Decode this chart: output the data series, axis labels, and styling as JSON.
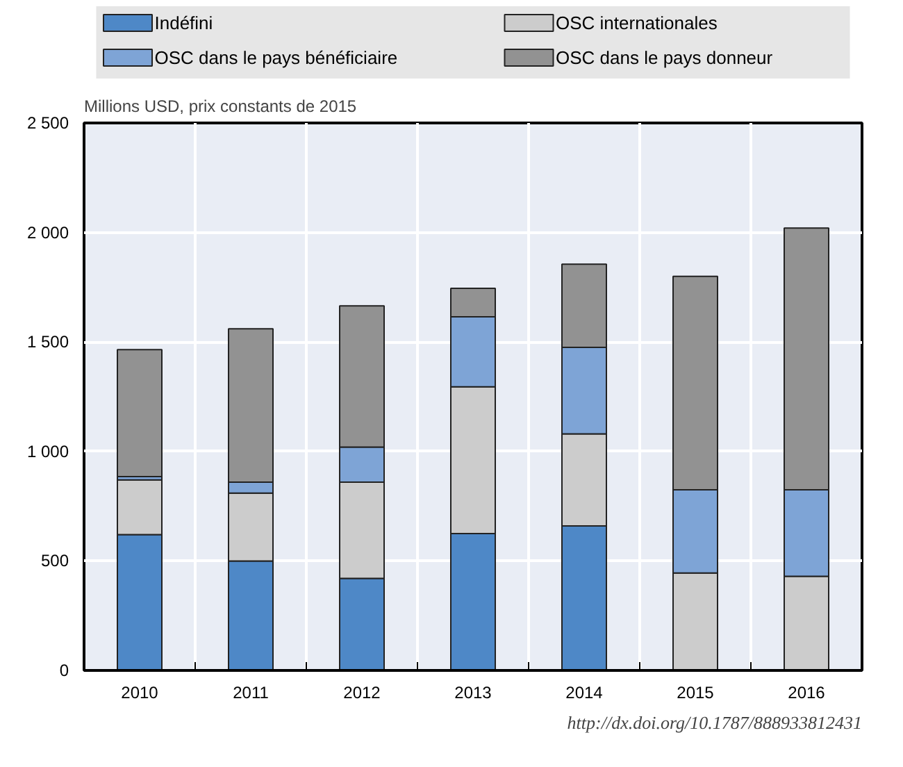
{
  "chart_data": {
    "type": "bar",
    "stacked": true,
    "ylabel": "Millions USD, prix constants de 2015",
    "categories": [
      "2010",
      "2011",
      "2012",
      "2013",
      "2014",
      "2015",
      "2016"
    ],
    "series": [
      {
        "name": "Indéfini",
        "color": "#4e88c7",
        "values": [
          620,
          500,
          420,
          625,
          660,
          null,
          null
        ]
      },
      {
        "name": "OSC internationales",
        "color": "#cccccc",
        "values": [
          250,
          310,
          440,
          670,
          420,
          445,
          430
        ]
      },
      {
        "name": "OSC dans le pays bénéficiaire",
        "color": "#7ea4d6",
        "values": [
          15,
          50,
          160,
          320,
          395,
          380,
          395
        ]
      },
      {
        "name": "OSC dans le pays donneur",
        "color": "#929292",
        "values": [
          580,
          700,
          645,
          130,
          380,
          975,
          1195
        ]
      }
    ],
    "ylim": [
      0,
      2500
    ],
    "yticks": [
      0,
      500,
      {
        "value": 1000,
        "label": "1 000"
      },
      {
        "value": 1500,
        "label": "1 500"
      },
      {
        "value": 2000,
        "label": "2 000"
      },
      {
        "value": 2500,
        "label": "2 500"
      }
    ],
    "grid": true,
    "legend": "top",
    "annotations": [
      "http://dx.doi.org/10.1787/888933812431"
    ]
  }
}
